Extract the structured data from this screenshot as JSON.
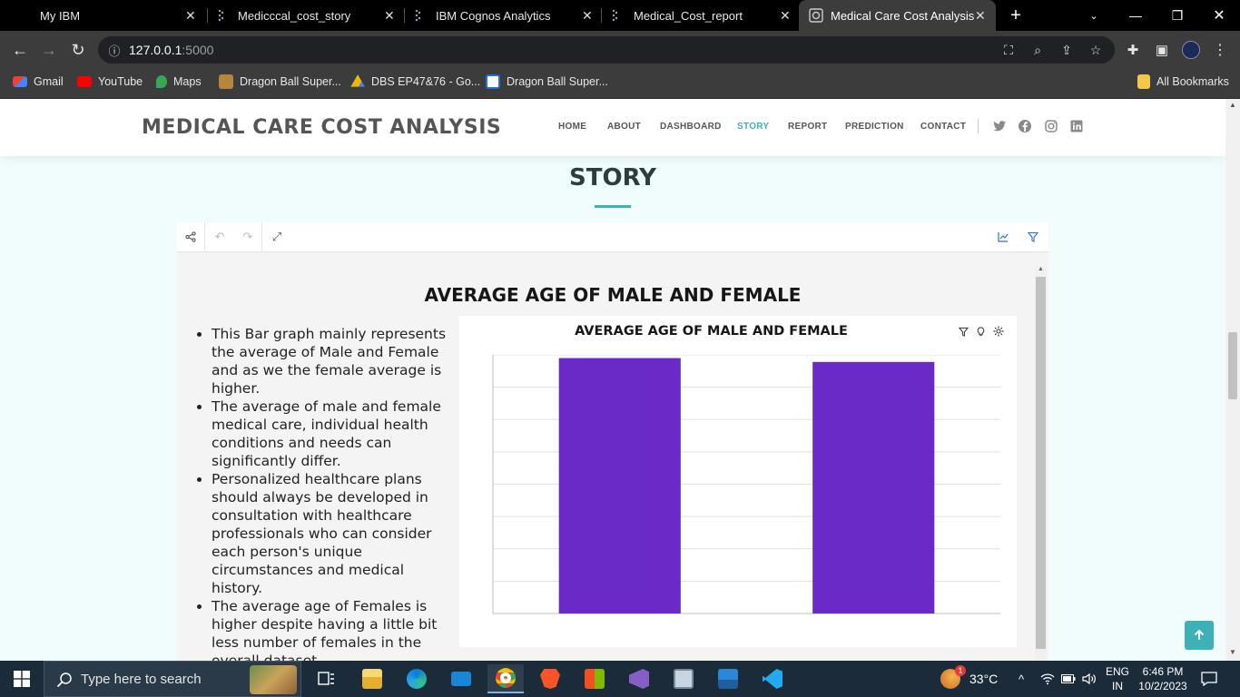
{
  "browser": {
    "tabs": [
      {
        "title": "My IBM",
        "active": false
      },
      {
        "title": "Medicccal_cost_story",
        "active": false
      },
      {
        "title": "IBM Cognos Analytics",
        "active": false
      },
      {
        "title": "Medical_Cost_report",
        "active": false
      },
      {
        "title": "Medical Care Cost Analysis",
        "active": true
      }
    ],
    "url_host": "127.0.0.1",
    "url_port": ":5000",
    "bookmarks": [
      {
        "label": "Gmail"
      },
      {
        "label": "YouTube"
      },
      {
        "label": "Maps"
      },
      {
        "label": "Dragon Ball Super..."
      },
      {
        "label": "DBS EP47&76 - Go..."
      },
      {
        "label": "Dragon Ball Super..."
      }
    ],
    "all_bookmarks": "All Bookmarks"
  },
  "site": {
    "logo": "MEDICAL CARE COST ANALYSIS",
    "nav": [
      "HOME",
      "ABOUT",
      "DASHBOARD",
      "STORY",
      "REPORT",
      "PREDICTION",
      "CONTACT"
    ],
    "active_nav": "STORY",
    "section_title": "STORY",
    "accent_color": "#3eb1b7"
  },
  "story": {
    "slide_title": "AVERAGE AGE OF MALE AND FEMALE",
    "notes": [
      "This Bar graph mainly represents the average of Male and Female and as we the female average is higher.",
      "The average of male and female medical care, individual health conditions and needs can significantly differ.",
      "Personalized healthcare plans should always be developed in consultation with healthcare professionals who can consider each person's unique circumstances and medical history.",
      "The average age of Females is higher despite having a little bit less number of females in the overall dataset."
    ]
  },
  "chart_data": {
    "type": "bar",
    "title": "AVERAGE AGE OF MALE AND FEMALE",
    "categories": [
      "",
      ""
    ],
    "values": [
      39.5,
      38.9
    ],
    "ylim": [
      0,
      40
    ],
    "gridlines": 8,
    "bar_color": "#6a2ac8",
    "grid": true
  },
  "taskbar": {
    "search_placeholder": "Type here to search",
    "weather": "33°C",
    "lang_top": "ENG",
    "lang_bottom": "IN",
    "time": "6:46 PM",
    "date": "10/2/2023",
    "notification_count": "1"
  }
}
